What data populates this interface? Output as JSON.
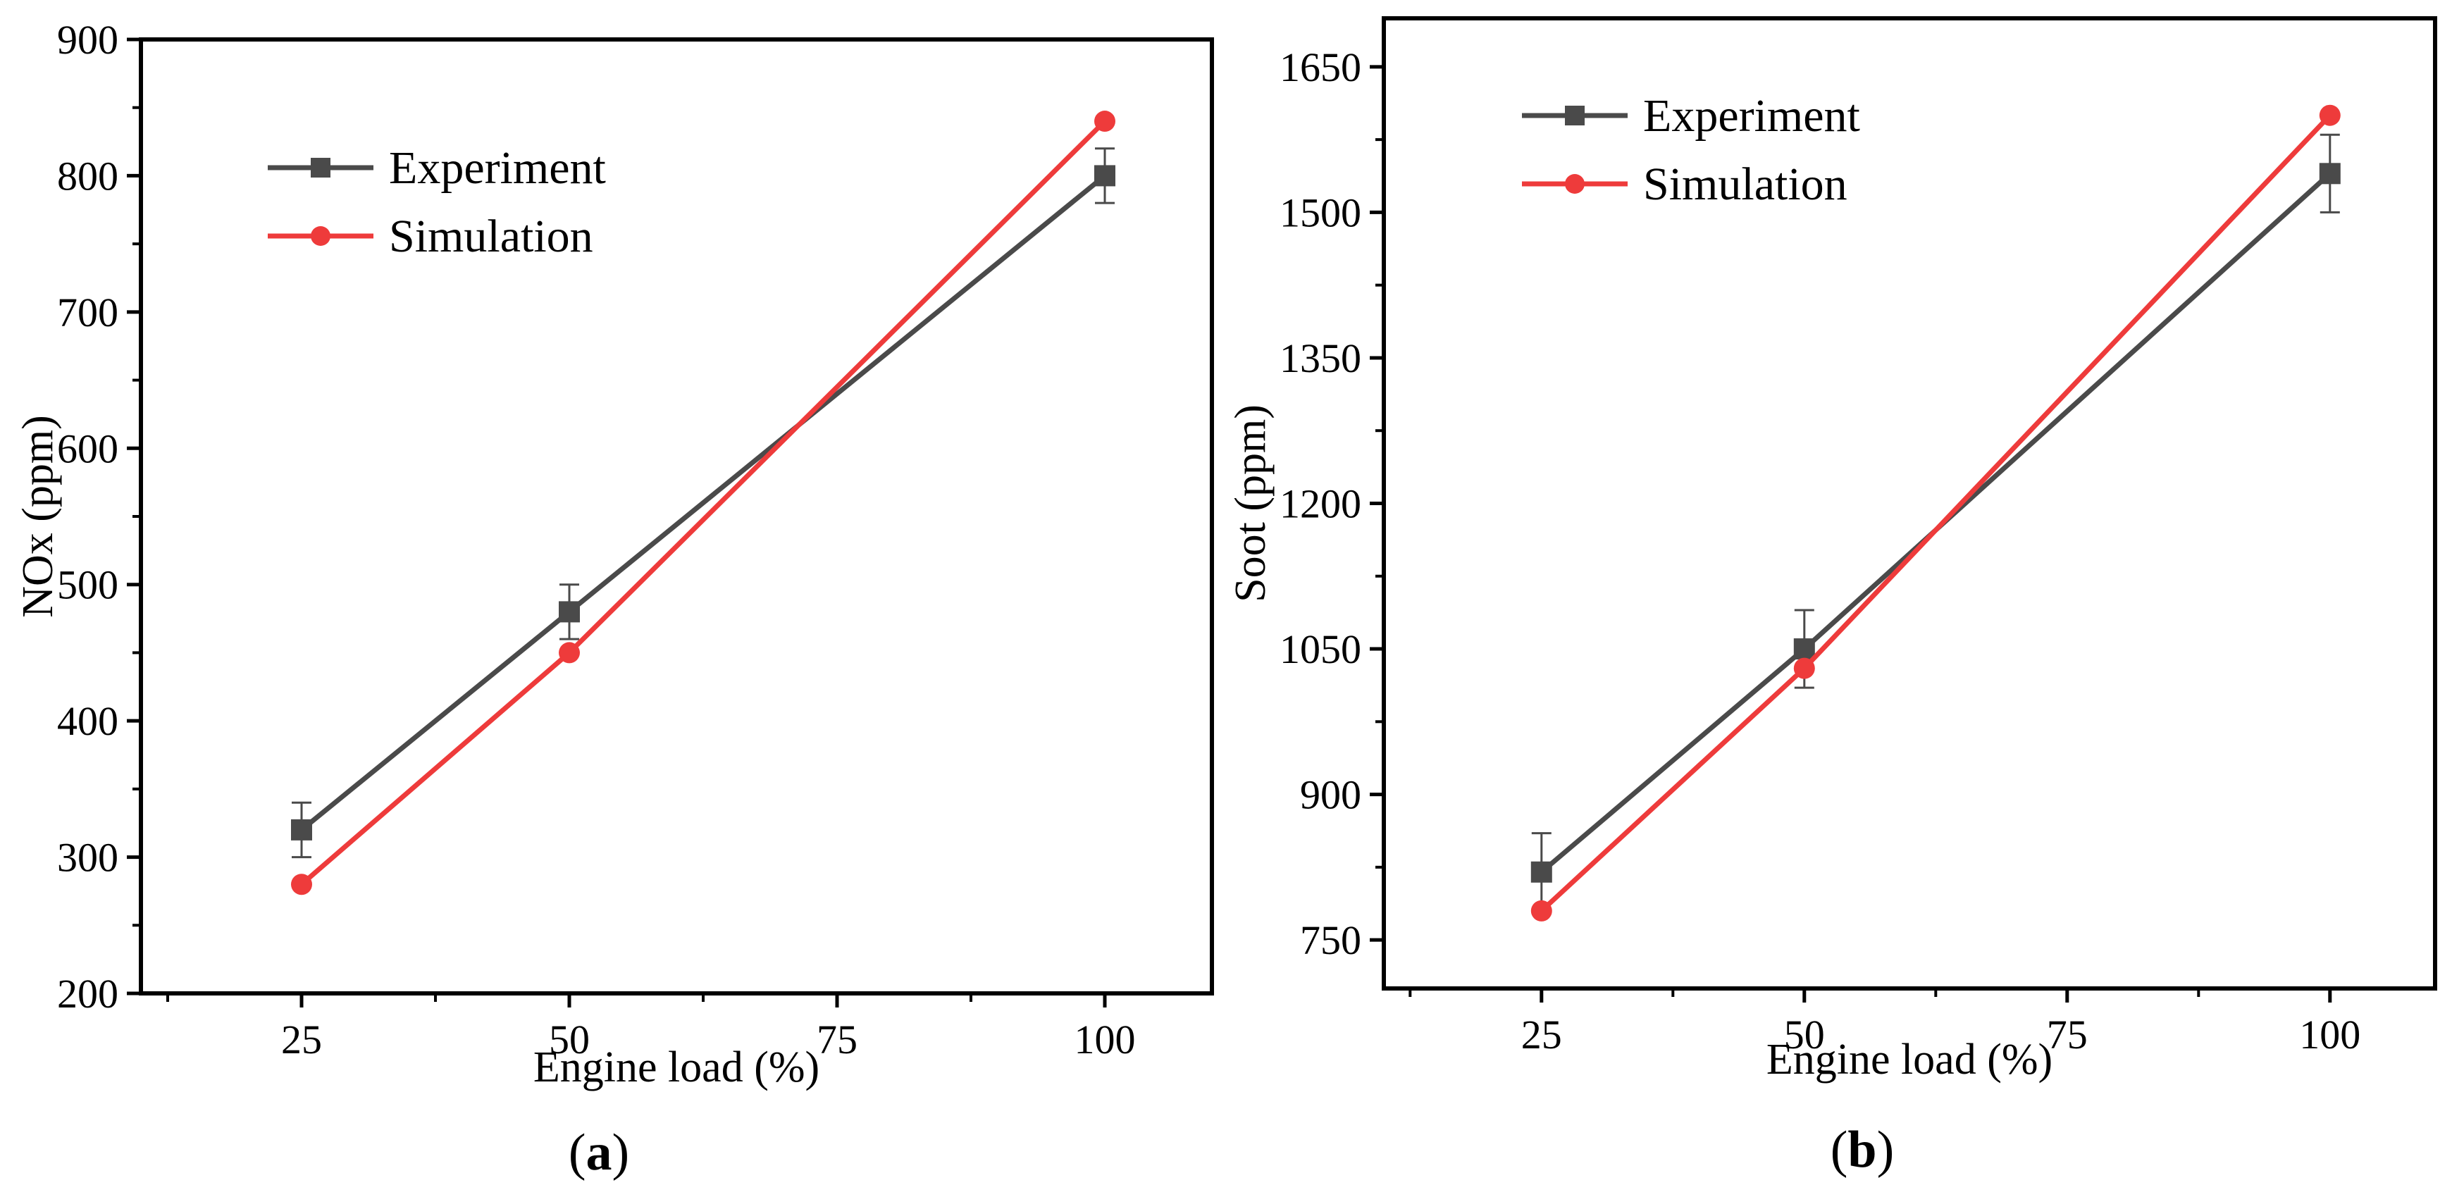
{
  "panels": [
    {
      "label_open": "(",
      "label_letter": "a",
      "label_close": ")"
    },
    {
      "label_open": "(",
      "label_letter": "b",
      "label_close": ")"
    }
  ],
  "colors": {
    "experiment": "#4a4a4a",
    "simulation": "#ee3b3b",
    "axis": "#000000"
  },
  "chart_data": [
    {
      "type": "line",
      "categories_note": "x axis is numeric engine load",
      "xlabel": "Engine load (%)",
      "ylabel": "NOx (ppm)",
      "xlim": [
        10,
        110
      ],
      "ylim": [
        200,
        900
      ],
      "xticks": [
        25,
        50,
        75,
        100
      ],
      "yticks": [
        200,
        300,
        400,
        500,
        600,
        700,
        800,
        900
      ],
      "legend_position": "top-left",
      "series": [
        {
          "name": "Experiment",
          "marker": "square",
          "x": [
            25,
            50,
            100
          ],
          "y": [
            320,
            480,
            800
          ],
          "yerr": [
            20,
            20,
            20
          ]
        },
        {
          "name": "Simulation",
          "marker": "circle",
          "x": [
            25,
            50,
            100
          ],
          "y": [
            280,
            450,
            840
          ]
        }
      ]
    },
    {
      "type": "line",
      "xlabel": "Engine load (%)",
      "ylabel": "Soot (ppm)",
      "xlim": [
        10,
        110
      ],
      "ylim": [
        700,
        1700
      ],
      "xticks": [
        25,
        50,
        75,
        100
      ],
      "yticks": [
        750,
        900,
        1050,
        1200,
        1350,
        1500,
        1650
      ],
      "legend_position": "top-left",
      "series": [
        {
          "name": "Experiment",
          "marker": "square",
          "x": [
            25,
            50,
            100
          ],
          "y": [
            820,
            1050,
            1540
          ],
          "yerr": [
            40,
            40,
            40
          ]
        },
        {
          "name": "Simulation",
          "marker": "circle",
          "x": [
            25,
            50,
            100
          ],
          "y": [
            780,
            1030,
            1600
          ]
        }
      ]
    }
  ]
}
